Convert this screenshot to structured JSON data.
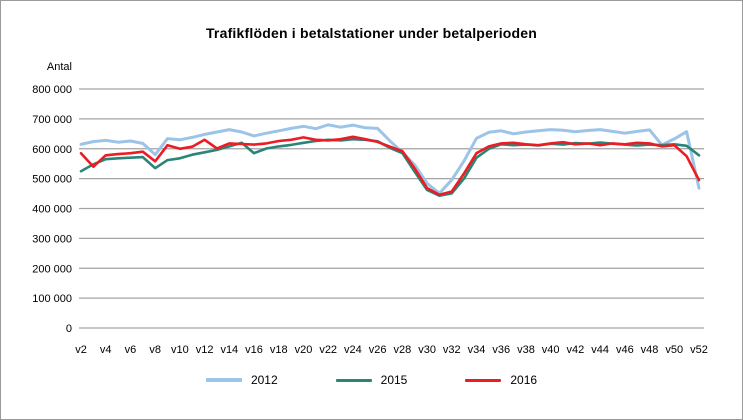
{
  "chart_data": {
    "type": "line",
    "title": "Trafikflöden i betalstationer under betalperioden",
    "ylabel": "Antal",
    "xlabel": "",
    "ylim": [
      0,
      800000
    ],
    "grid": "horizontal",
    "legend_position": "bottom",
    "y_ticks": [
      "0",
      "100 000",
      "200 000",
      "300 000",
      "400 000",
      "500 000",
      "600 000",
      "700 000",
      "800 000"
    ],
    "x_tick_labels_shown": [
      "v2",
      "v4",
      "v6",
      "v8",
      "v10",
      "v12",
      "v14",
      "v16",
      "v18",
      "v20",
      "v22",
      "v24",
      "v26",
      "v28",
      "v30",
      "v32",
      "v34",
      "v36",
      "v38",
      "v40",
      "v42",
      "v44",
      "v46",
      "v48",
      "v50",
      "v52"
    ],
    "x": [
      "v2",
      "v3",
      "v4",
      "v5",
      "v6",
      "v7",
      "v8",
      "v9",
      "v10",
      "v11",
      "v12",
      "v13",
      "v14",
      "v15",
      "v16",
      "v17",
      "v18",
      "v19",
      "v20",
      "v21",
      "v22",
      "v23",
      "v24",
      "v25",
      "v26",
      "v27",
      "v28",
      "v29",
      "v30",
      "v31",
      "v32",
      "v33",
      "v34",
      "v35",
      "v36",
      "v37",
      "v38",
      "v39",
      "v40",
      "v41",
      "v42",
      "v43",
      "v44",
      "v45",
      "v46",
      "v47",
      "v48",
      "v49",
      "v50",
      "v51",
      "v52"
    ],
    "series": [
      {
        "name": "2012",
        "color": "#9CC3E8",
        "values": [
          615000,
          624000,
          628000,
          622000,
          626000,
          618000,
          580000,
          634000,
          630000,
          638000,
          648000,
          656000,
          664000,
          656000,
          643000,
          652000,
          660000,
          668000,
          675000,
          667000,
          680000,
          672000,
          679000,
          670000,
          668000,
          626000,
          588000,
          546000,
          484000,
          451000,
          496000,
          560000,
          635000,
          655000,
          660000,
          650000,
          656000,
          660000,
          664000,
          662000,
          657000,
          661000,
          664000,
          658000,
          652000,
          658000,
          663000,
          613000,
          633000,
          657000,
          468000
        ]
      },
      {
        "name": "2015",
        "color": "#2A8577",
        "values": [
          525000,
          548000,
          565000,
          568000,
          570000,
          572000,
          535000,
          562000,
          568000,
          580000,
          588000,
          596000,
          608000,
          620000,
          585000,
          601000,
          608000,
          613000,
          620000,
          626000,
          630000,
          628000,
          632000,
          630000,
          625000,
          603000,
          585000,
          523000,
          462000,
          443000,
          451000,
          501000,
          570000,
          600000,
          615000,
          612000,
          614000,
          611000,
          617000,
          614000,
          619000,
          617000,
          621000,
          617000,
          614000,
          611000,
          614000,
          612000,
          615000,
          610000,
          578000
        ]
      },
      {
        "name": "2016",
        "color": "#ED1C24",
        "values": [
          585000,
          540000,
          578000,
          582000,
          585000,
          590000,
          558000,
          612000,
          600000,
          607000,
          630000,
          601000,
          618000,
          616000,
          614000,
          618000,
          626000,
          630000,
          638000,
          630000,
          628000,
          632000,
          640000,
          632000,
          623000,
          607000,
          592000,
          534000,
          468000,
          446000,
          457000,
          518000,
          585000,
          608000,
          618000,
          620000,
          615000,
          612000,
          618000,
          622000,
          615000,
          618000,
          612000,
          618000,
          615000,
          620000,
          618000,
          608000,
          612000,
          575000,
          495000
        ]
      }
    ],
    "gridline_color": "#A3A3A3",
    "text_color": "#000000"
  }
}
